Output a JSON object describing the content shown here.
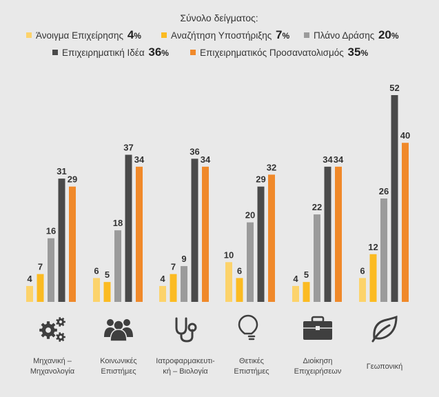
{
  "chart_data": {
    "type": "bar",
    "legend_title": "Σύνολο δείγματος:",
    "series": [
      {
        "name": "Άνοιγμα Επιχείρησης",
        "total_pct": "4",
        "color": "#fcd36b",
        "values": [
          4,
          6,
          4,
          10,
          4,
          6
        ]
      },
      {
        "name": "Αναζήτηση Υποστήριξης",
        "total_pct": "7",
        "color": "#fbbb22",
        "values": [
          7,
          5,
          7,
          6,
          5,
          12
        ]
      },
      {
        "name": "Πλάνο Δράσης",
        "total_pct": "20",
        "color": "#9b9b9b",
        "values": [
          16,
          18,
          9,
          20,
          22,
          26
        ]
      },
      {
        "name": "Επιχειρηματική Ιδέα",
        "total_pct": "36",
        "color": "#4a4a4a",
        "values": [
          31,
          37,
          36,
          29,
          34,
          52
        ]
      },
      {
        "name": "Επιχειρηματικός Προσανατολισμός",
        "total_pct": "35",
        "color": "#f0892a",
        "values": [
          29,
          34,
          34,
          32,
          34,
          40
        ]
      }
    ],
    "pct_sign": "%",
    "categories": [
      {
        "lines": [
          "Μηχανική –",
          "Μηχανολογία"
        ],
        "icon": "gears-icon"
      },
      {
        "lines": [
          "Κοινωνικές",
          "Επιστήμες"
        ],
        "icon": "people-icon"
      },
      {
        "lines": [
          "Ιατροφαρμακευτι-",
          "κή – Βιολογία"
        ],
        "icon": "stethoscope-icon"
      },
      {
        "lines": [
          "Θετικές",
          "Επιστήμες"
        ],
        "icon": "lightbulb-icon"
      },
      {
        "lines": [
          "Διοίκηση",
          "Επιχειρήσεων"
        ],
        "icon": "briefcase-icon"
      },
      {
        "lines": [
          "Γεωπονική"
        ],
        "icon": "leaf-icon"
      }
    ],
    "ylim": [
      0,
      55
    ]
  }
}
